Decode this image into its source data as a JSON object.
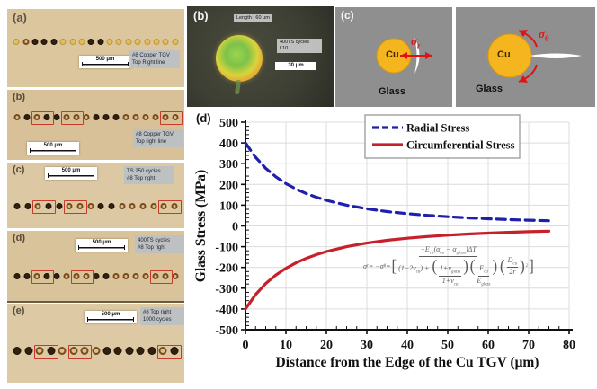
{
  "figure": {
    "micro_panels": [
      {
        "letter": "(a)",
        "scale_text": "500 μm",
        "label_lines": [
          "#8 Copper TGV",
          "Top Right line"
        ],
        "dots": [
          "g",
          "r",
          "d",
          "d",
          "d",
          "g",
          "g",
          "g",
          "d",
          "d",
          "g",
          "g",
          "g",
          "g",
          "g",
          "g",
          "g",
          "g"
        ],
        "red_boxes": []
      },
      {
        "letter": "(b)",
        "scale_text": "500 μm",
        "label_lines": [
          "#8 Copper TGV",
          "Top right line"
        ],
        "dots": [
          "r",
          "d",
          "r",
          "d",
          "d",
          "r",
          "r",
          "r",
          "d",
          "d",
          "d",
          "r",
          "r",
          "r",
          "r",
          "r",
          "r"
        ],
        "red_boxes": [
          [
            2,
            3
          ],
          [
            5,
            6
          ],
          [
            15,
            16
          ]
        ]
      },
      {
        "letter": "(c)",
        "scale_text": "500 μm",
        "label_lines": [
          "TS 250 cycles",
          "#8 Top right"
        ],
        "dots": [
          "d",
          "d",
          "r",
          "d",
          "d",
          "r",
          "r",
          "r",
          "d",
          "d",
          "r",
          "r",
          "r",
          "r",
          "r",
          "r"
        ],
        "red_boxes": [
          [
            2,
            3
          ],
          [
            5,
            6
          ],
          [
            14,
            15
          ]
        ]
      },
      {
        "letter": "(d)",
        "scale_text": "500 μm",
        "label_lines": [
          "400TS cycles",
          "#8 Top right"
        ],
        "dots": [
          "d",
          "d",
          "r",
          "d",
          "d",
          "r",
          "r",
          "r",
          "d",
          "d",
          "r",
          "r",
          "r",
          "r",
          "r",
          "r",
          "r"
        ],
        "red_boxes": [
          [
            2,
            3
          ],
          [
            6,
            7
          ],
          [
            14,
            15
          ]
        ]
      },
      {
        "letter": "(e)",
        "scale_text": "500 μm",
        "label_lines": [
          "#8 Top right",
          "1000 cycles"
        ],
        "dots": [
          "d",
          "d",
          "r",
          "d",
          "r",
          "r",
          "r",
          "r",
          "d",
          "d",
          "d",
          "d",
          "d",
          "r",
          "d"
        ],
        "red_boxes": [
          [
            2,
            3
          ],
          [
            5,
            6
          ],
          [
            13,
            14
          ]
        ]
      }
    ],
    "via_photo": {
      "letter": "(b)",
      "top_label": "Length : 60 μm",
      "side_label_lines": [
        "400TS cycles",
        "L10"
      ],
      "scale_text": "30 μm"
    },
    "schematics": {
      "letter": "(c)",
      "left": {
        "cu": "Cu",
        "glass": "Glass",
        "sigma": "σ",
        "sigma_sub": "r"
      },
      "right": {
        "cu": "Cu",
        "glass": "Glass",
        "sigma": "σ",
        "sigma_sub": "θ"
      }
    },
    "chart_letter": "(d)",
    "equation_tokens": [
      {
        "t": "σ"
      },
      {
        "s": "r"
      },
      {
        "t": " = −σ"
      },
      {
        "s": "θ"
      },
      {
        "t": " = "
      },
      {
        "b": "["
      },
      {
        "f": [
          [
            {
              "t": "−E"
            },
            {
              "s": "cu"
            },
            {
              "t": "(α"
            },
            {
              "s": "cu"
            },
            {
              "t": " − α"
            },
            {
              "s": "glass"
            },
            {
              "t": ")ΔT"
            }
          ],
          [
            {
              "t": "(1−2ν"
            },
            {
              "s": "cu"
            },
            {
              "t": ") + "
            },
            {
              "b": "("
            },
            {
              "f": [
                [
                  {
                    "t": "1+ν"
                  },
                  {
                    "s": "glass"
                  }
                ],
                [
                  {
                    "t": "1+ν"
                  },
                  {
                    "s": "cu"
                  }
                ]
              ]
            },
            {
              "b": ")"
            },
            {
              "b": "("
            },
            {
              "f": [
                [
                  {
                    "t": "E"
                  },
                  {
                    "s": "cu"
                  }
                ],
                [
                  {
                    "t": "E"
                  },
                  {
                    "s": "glass"
                  }
                ]
              ]
            },
            {
              "b": ")"
            }
          ]
        ]
      },
      {
        "b": "("
      },
      {
        "f": [
          [
            {
              "t": "D"
            },
            {
              "s": "cu"
            }
          ],
          [
            {
              "t": "2r"
            }
          ]
        ]
      },
      {
        "b": ")"
      },
      {
        "p": "2"
      },
      {
        "b": "]"
      }
    ]
  },
  "chart_data": {
    "type": "line",
    "title": "",
    "xlabel": "Distance from the Edge of the Cu TGV (μm)",
    "ylabel": "Glass Stress (MPa)",
    "xlim": [
      0,
      80
    ],
    "ylim": [
      -500,
      500
    ],
    "x_major_tick": 10,
    "x_minor_tick": 2.5,
    "y_major_tick": 100,
    "y_minor_tick": 20,
    "grid": true,
    "legend_position": "top-center",
    "x": [
      0,
      2.5,
      5,
      7.5,
      10,
      12.5,
      15,
      17.5,
      20,
      25,
      30,
      35,
      40,
      45,
      50,
      55,
      60,
      65,
      70,
      75
    ],
    "series": [
      {
        "name": "Radial Stress",
        "color": "#1f1fae",
        "style": "dashed",
        "values": [
          400,
          330.6,
          277.8,
          236.7,
          204.1,
          177.8,
          156.3,
          138.4,
          123.5,
          100,
          82.6,
          69.4,
          59.2,
          51,
          44.4,
          39.1,
          34.6,
          30.9,
          27.7,
          25
        ]
      },
      {
        "name": "Circumferential Stress",
        "color": "#c8202a",
        "style": "solid",
        "values": [
          -400,
          -330.6,
          -277.8,
          -236.7,
          -204.1,
          -177.8,
          -156.3,
          -138.4,
          -123.5,
          -100,
          -82.6,
          -69.4,
          -59.2,
          -51,
          -44.4,
          -39.1,
          -34.6,
          -30.9,
          -27.7,
          -25
        ]
      }
    ],
    "colors": {
      "axis": "#111111",
      "grid": "#dcdcdc",
      "legend_border": "#999999"
    }
  }
}
